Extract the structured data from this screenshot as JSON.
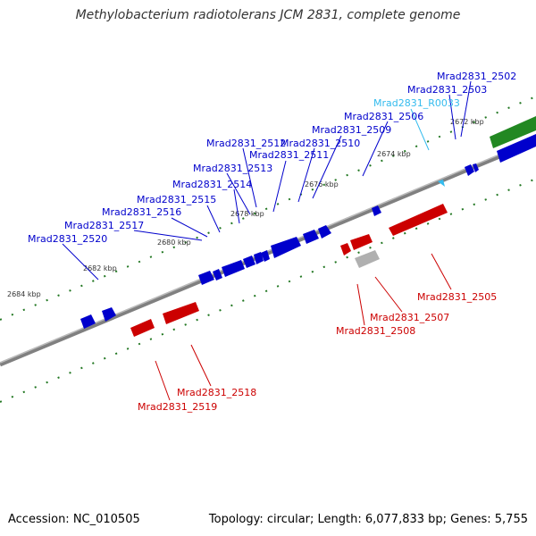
{
  "title": "Methylobacterium radiotolerans JCM 2831, complete genome",
  "footer": {
    "accession": "Accession: NC_010505",
    "summary": "Topology: circular; Length: 6,077,833 bp; Genes: 5,755"
  },
  "colors": {
    "forward": "#0000cc",
    "reverse": "#cc0000",
    "rna": "#33bbee",
    "other": "#b0b0b0",
    "green": "#228822",
    "backbone": "#808080",
    "tick": "#227722"
  },
  "ticks": [
    "2672 kbp",
    "2674 kbp",
    "2676 kbp",
    "2678 kbp",
    "2680 kbp",
    "2682 kbp",
    "2684 kbp"
  ],
  "genes": [
    {
      "label": "Mrad2831_2502",
      "strand": "forward"
    },
    {
      "label": "Mrad2831_2503",
      "strand": "forward"
    },
    {
      "label": "Mrad2831_R0033",
      "strand": "rna"
    },
    {
      "label": "Mrad2831_2506",
      "strand": "forward"
    },
    {
      "label": "Mrad2831_2509",
      "strand": "forward"
    },
    {
      "label": "Mrad2831_2510",
      "strand": "forward"
    },
    {
      "label": "Mrad2831_2512",
      "strand": "forward"
    },
    {
      "label": "Mrad2831_2511",
      "strand": "forward"
    },
    {
      "label": "Mrad2831_2513",
      "strand": "forward"
    },
    {
      "label": "Mrad2831_2514",
      "strand": "forward"
    },
    {
      "label": "Mrad2831_2515",
      "strand": "forward"
    },
    {
      "label": "Mrad2831_2516",
      "strand": "forward"
    },
    {
      "label": "Mrad2831_2517",
      "strand": "forward"
    },
    {
      "label": "Mrad2831_2520",
      "strand": "forward"
    },
    {
      "label": "Mrad2831_2505",
      "strand": "reverse"
    },
    {
      "label": "Mrad2831_2507",
      "strand": "reverse"
    },
    {
      "label": "Mrad2831_2508",
      "strand": "reverse"
    },
    {
      "label": "Mrad2831_2518",
      "strand": "reverse"
    },
    {
      "label": "Mrad2831_2519",
      "strand": "reverse"
    }
  ]
}
